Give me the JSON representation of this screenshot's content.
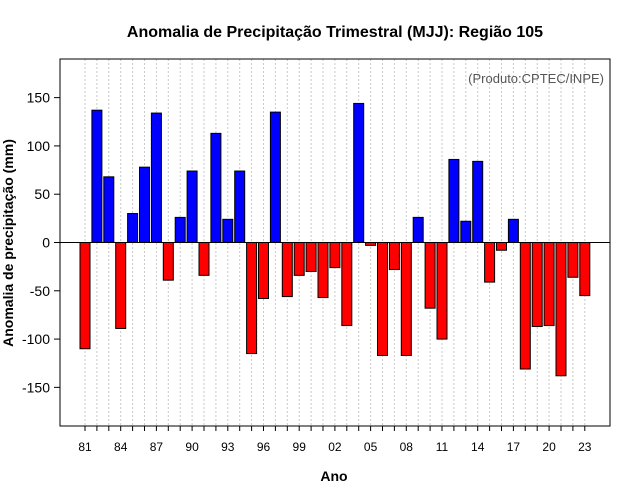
{
  "chart_data": {
    "type": "bar",
    "title": "Anomalia de Precipitação Trimestral (MJJ): Região 105",
    "xlabel": "Ano",
    "ylabel": "Anomalia de precipitação (mm)",
    "annotation": "(Produto:CPTEC/INPE)",
    "ylim": [
      -190,
      190
    ],
    "yticks": [
      -150,
      -100,
      -50,
      0,
      50,
      100,
      150
    ],
    "grid": "vertical dotted",
    "legend": "none",
    "positive_color": "#0000ff",
    "negative_color": "#ff0000",
    "categories": [
      "81",
      "82",
      "83",
      "84",
      "85",
      "86",
      "87",
      "88",
      "89",
      "90",
      "91",
      "92",
      "93",
      "94",
      "95",
      "96",
      "97",
      "98",
      "99",
      "00",
      "01",
      "02",
      "03",
      "04",
      "05",
      "06",
      "07",
      "08",
      "09",
      "10",
      "11",
      "12",
      "13",
      "14",
      "15",
      "16",
      "17",
      "18",
      "19",
      "20",
      "21",
      "22",
      "23"
    ],
    "xtick_labels": [
      "81",
      "84",
      "87",
      "90",
      "93",
      "96",
      "99",
      "02",
      "05",
      "08",
      "11",
      "14",
      "17",
      "20",
      "23"
    ],
    "values": [
      -110,
      137,
      68,
      -89,
      30,
      78,
      134,
      -39,
      26,
      74,
      -34,
      113,
      24,
      74,
      -115,
      -58,
      135,
      -56,
      -34,
      -30,
      -57,
      -26,
      -86,
      144,
      -3,
      -117,
      -28,
      -117,
      26,
      -68,
      -100,
      86,
      22,
      84,
      -41,
      -8,
      24,
      -131,
      -87,
      -86,
      -138,
      -36,
      -55
    ]
  }
}
